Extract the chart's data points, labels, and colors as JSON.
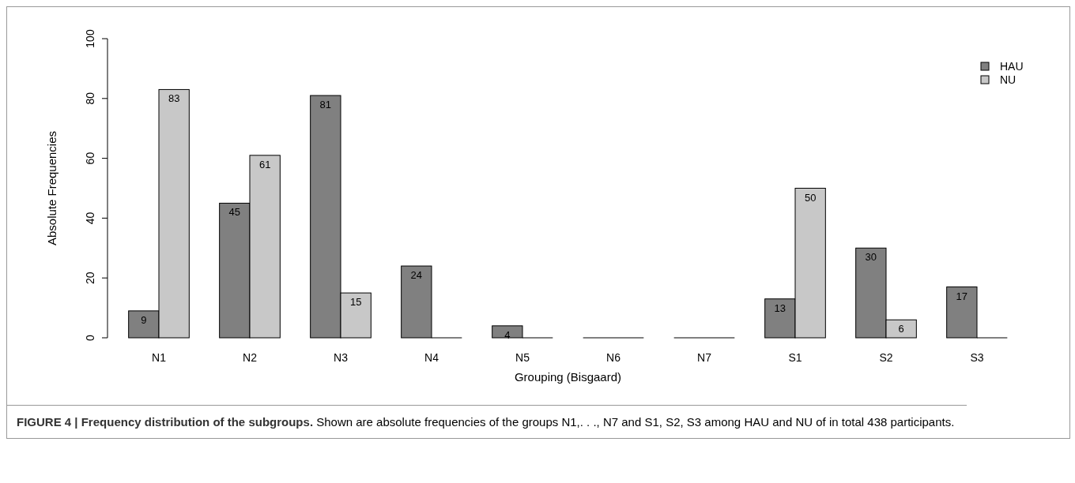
{
  "chart_data": {
    "type": "bar",
    "title": "FIGURE 4 | Frequency distribution of the subgroups.",
    "xlabel": "Grouping (Bisgaard)",
    "ylabel": "Absolute Frequencies",
    "categories": [
      "N1",
      "N2",
      "N3",
      "N4",
      "N5",
      "N6",
      "N7",
      "S1",
      "S2",
      "S3"
    ],
    "series": [
      {
        "name": "HAU",
        "color": "#808080",
        "values": [
          9,
          45,
          81,
          24,
          4,
          0,
          0,
          13,
          30,
          17
        ],
        "value_labels": [
          "9",
          "45",
          "81",
          "24",
          "4",
          null,
          null,
          "13",
          "30",
          "17"
        ]
      },
      {
        "name": "NU",
        "color": "#c8c8c8",
        "values": [
          83,
          61,
          15,
          0,
          0,
          0,
          0,
          50,
          6,
          0
        ],
        "value_labels": [
          "83",
          "61",
          "15",
          null,
          null,
          null,
          null,
          "50",
          "6",
          null
        ]
      }
    ],
    "ylim": [
      0,
      100
    ],
    "yticks": [
      0,
      20,
      40,
      60,
      80,
      100
    ],
    "legend": "top right",
    "annotations": [
      "Shown are absolute frequencies of the groups N1,. . ., N7 and S1, S2, S3 among HAU and NU of in total 438 participants."
    ]
  }
}
